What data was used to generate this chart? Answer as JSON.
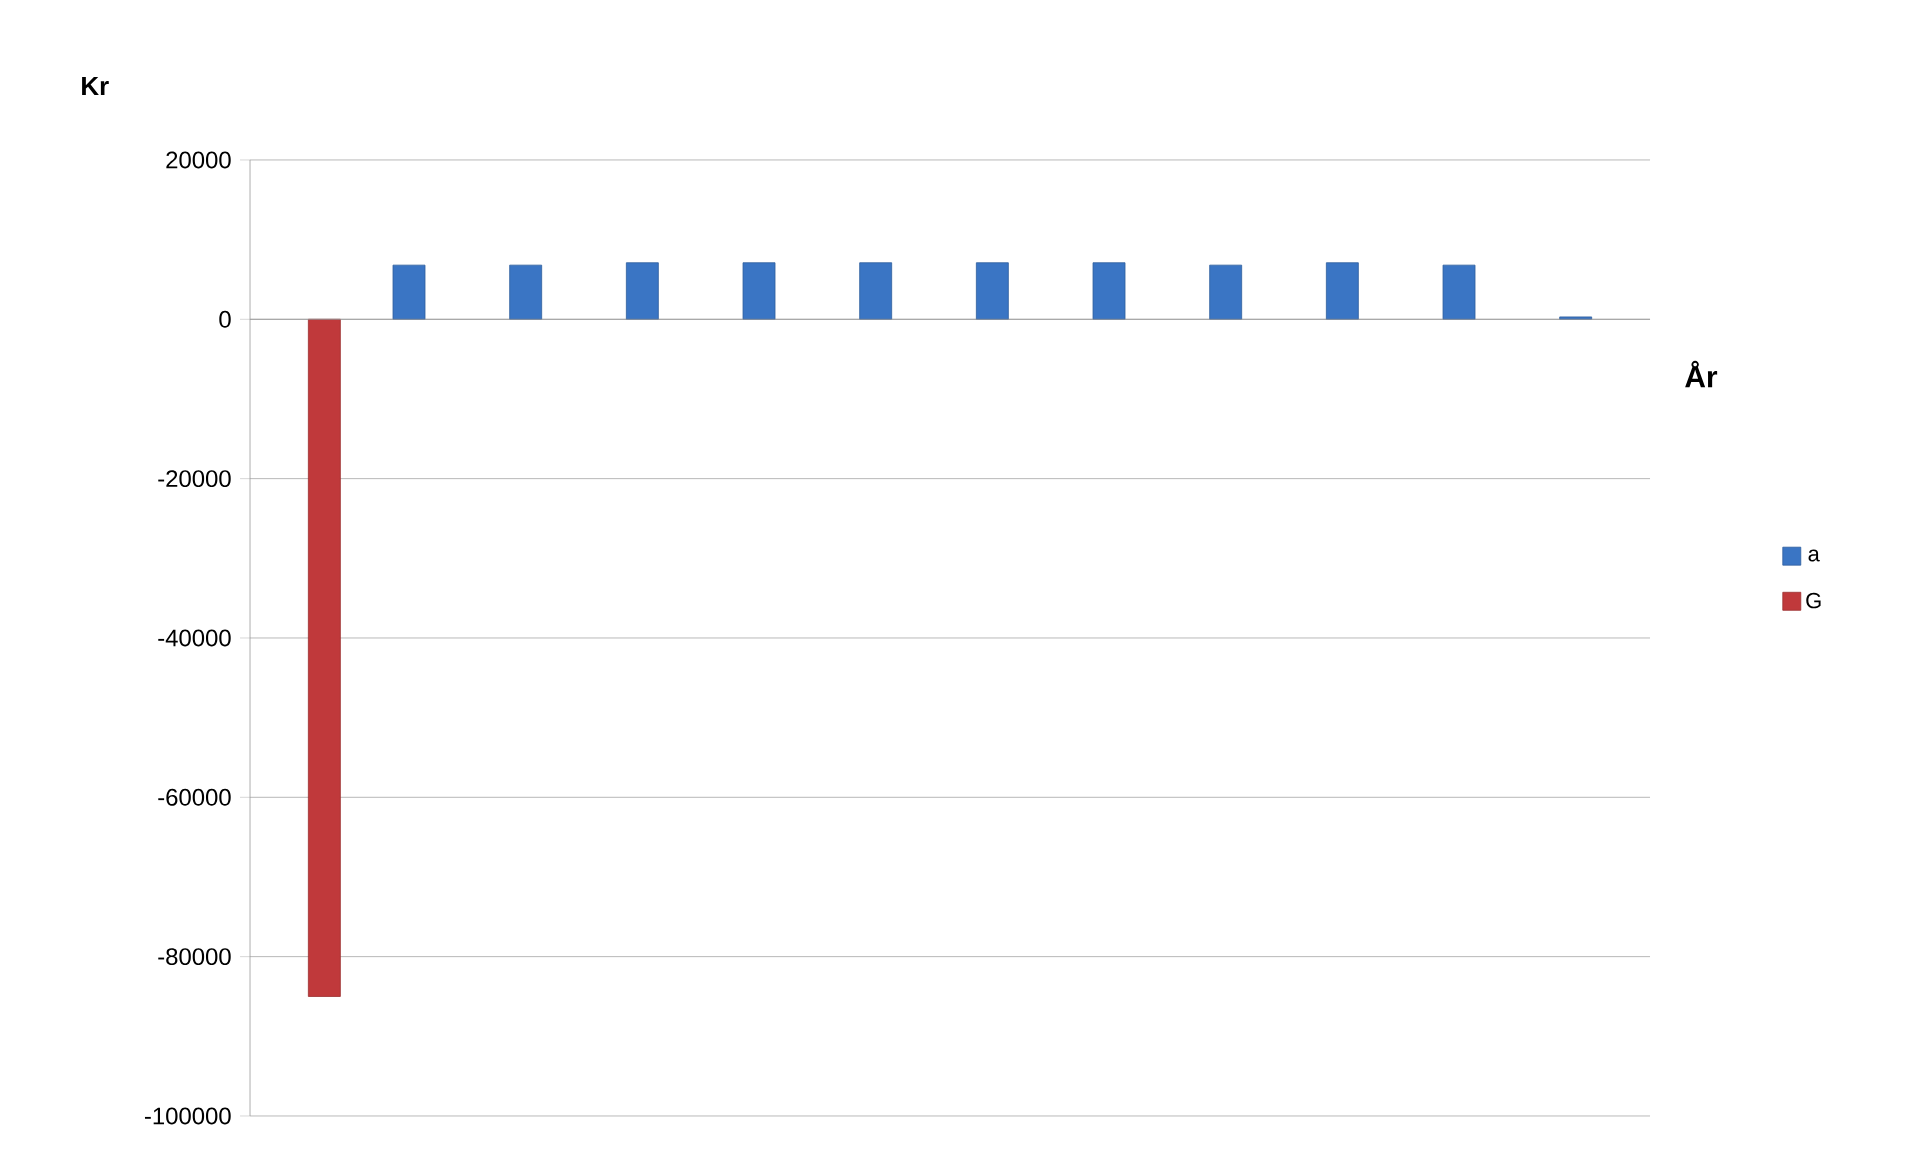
{
  "chart_data": {
    "type": "bar",
    "categories": [
      null,
      null,
      null,
      null,
      null,
      null,
      null,
      null,
      null,
      null,
      null,
      null
    ],
    "series": [
      {
        "name": "a",
        "color": "#3a75c4",
        "values": [
          null,
          6800,
          6800,
          7100,
          7100,
          7100,
          7100,
          7100,
          6800,
          7100,
          6800,
          300
        ]
      },
      {
        "name": "G",
        "color": "#c0393b",
        "values": [
          -85000,
          null,
          null,
          null,
          null,
          null,
          null,
          null,
          null,
          null,
          null,
          null
        ]
      }
    ],
    "xlabel": "År",
    "ylabel": "Kr",
    "ylim": [
      -100000,
      20000
    ],
    "yticks": [
      -100000,
      -80000,
      -60000,
      -40000,
      -20000,
      0,
      20000
    ],
    "grid": "y",
    "legend": "right"
  }
}
